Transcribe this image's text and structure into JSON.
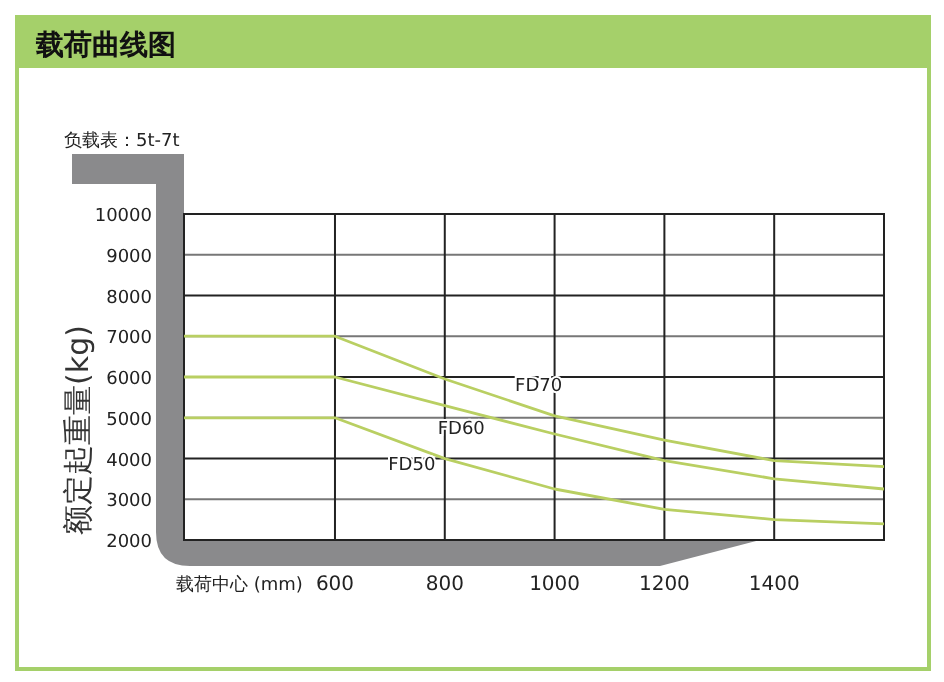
{
  "chart_data": {
    "type": "line",
    "title": "载荷曲线图",
    "subtitle": "负载表：5t-7t",
    "xlabel": "载荷中心 (mm)",
    "ylabel": "额定起重量(kg)",
    "xlim": [
      325,
      1600
    ],
    "xticks": [
      600,
      800,
      1000,
      1200,
      1400
    ],
    "ylim": [
      2000,
      10000
    ],
    "yticks": [
      2000,
      3000,
      4000,
      5000,
      6000,
      7000,
      8000,
      9000,
      10000
    ],
    "grid": true,
    "marker": "none",
    "line_style": "solid",
    "series": [
      {
        "name": "FD70",
        "color": "#b9cf62",
        "x": [
          325,
          600,
          800,
          1000,
          1200,
          1400,
          1600
        ],
        "values": [
          7000,
          7000,
          5950,
          5050,
          4450,
          3950,
          3800
        ]
      },
      {
        "name": "FD60",
        "color": "#b9cf62",
        "x": [
          325,
          600,
          800,
          1000,
          1200,
          1400,
          1600
        ],
        "values": [
          6000,
          6000,
          5300,
          4600,
          3950,
          3500,
          3250
        ]
      },
      {
        "name": "FD50",
        "color": "#b9cf62",
        "x": [
          325,
          600,
          800,
          1000,
          1200,
          1400,
          1600
        ],
        "values": [
          5000,
          5000,
          4000,
          3250,
          2750,
          2500,
          2400
        ]
      }
    ]
  }
}
